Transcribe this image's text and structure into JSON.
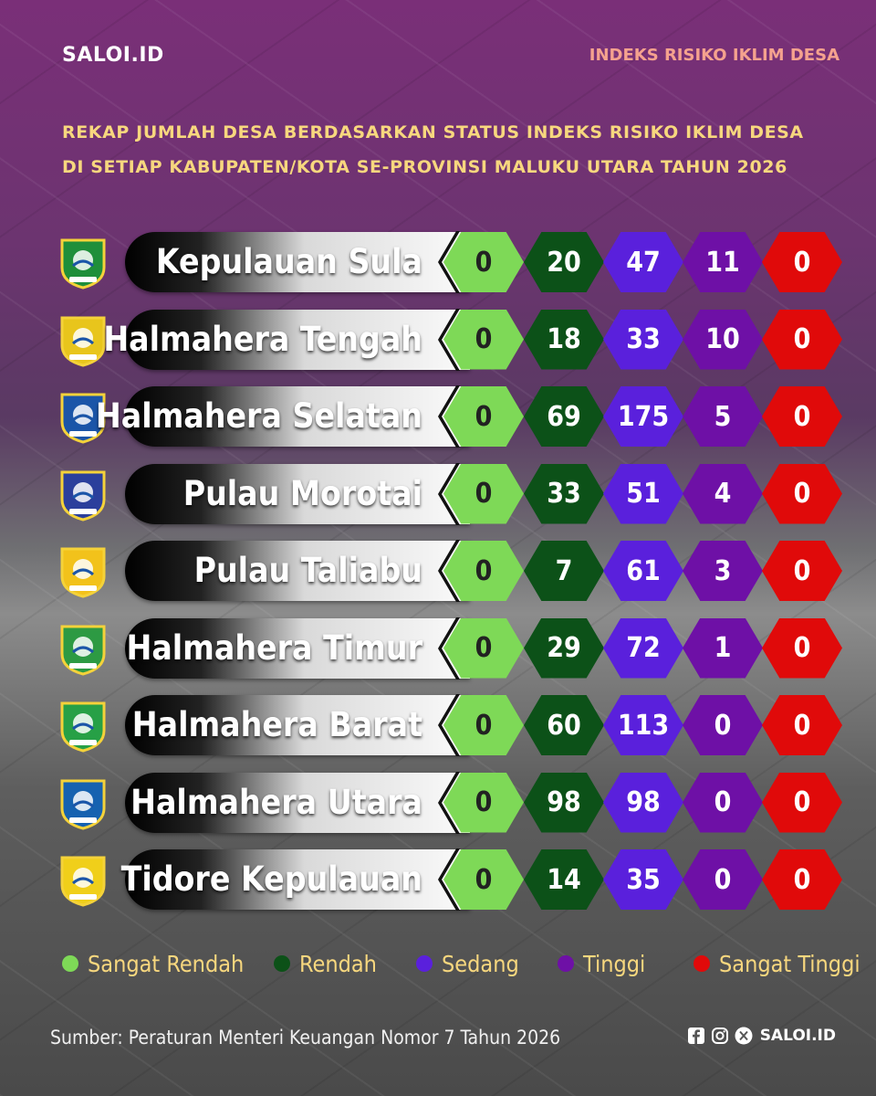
{
  "header": {
    "brand": "SALOI.ID",
    "topic": "INDEKS RISIKO IKLIM DESA",
    "title_line1": "REKAP JUMLAH DESA BERDASARKAN STATUS INDEKS RISIKO IKLIM DESA",
    "title_line2": "DI SETIAP KABUPATEN/KOTA SE-PROVINSI MALUKU UTARA TAHUN 2026"
  },
  "chart_data": {
    "type": "table",
    "columns": [
      "Sangat Rendah",
      "Rendah",
      "Sedang",
      "Tinggi",
      "Sangat Tinggi"
    ],
    "colors": [
      "#7ed957",
      "#0c5118",
      "#5a20dc",
      "#6e10a6",
      "#e00a0a"
    ],
    "rows": [
      {
        "region": "Kepulauan Sula",
        "values": [
          0,
          20,
          47,
          11,
          0
        ]
      },
      {
        "region": "Halmahera Tengah",
        "values": [
          0,
          18,
          33,
          10,
          0
        ]
      },
      {
        "region": "Halmahera Selatan",
        "values": [
          0,
          69,
          175,
          5,
          0
        ]
      },
      {
        "region": "Pulau Morotai",
        "values": [
          0,
          33,
          51,
          4,
          0
        ]
      },
      {
        "region": "Pulau Taliabu",
        "values": [
          0,
          7,
          61,
          3,
          0
        ]
      },
      {
        "region": "Halmahera Timur",
        "values": [
          0,
          29,
          72,
          1,
          0
        ]
      },
      {
        "region": "Halmahera Barat",
        "values": [
          0,
          60,
          113,
          0,
          0
        ]
      },
      {
        "region": "Halmahera Utara",
        "values": [
          0,
          98,
          98,
          0,
          0
        ]
      },
      {
        "region": "Tidore Kepulauan",
        "values": [
          0,
          14,
          35,
          0,
          0
        ]
      }
    ]
  },
  "legend": [
    {
      "label": "Sangat Rendah",
      "color": "#7ed957"
    },
    {
      "label": "Rendah",
      "color": "#0c5118"
    },
    {
      "label": "Sedang",
      "color": "#5a20dc"
    },
    {
      "label": "Tinggi",
      "color": "#6e10a6"
    },
    {
      "label": "Sangat Tinggi",
      "color": "#e00a0a"
    }
  ],
  "footer": {
    "source": "Sumber: Peraturan Menteri Keuangan Nomor 7 Tahun 2026",
    "handle": "SALOI.ID",
    "social_icons": [
      "facebook-icon",
      "instagram-icon",
      "x-icon"
    ]
  }
}
